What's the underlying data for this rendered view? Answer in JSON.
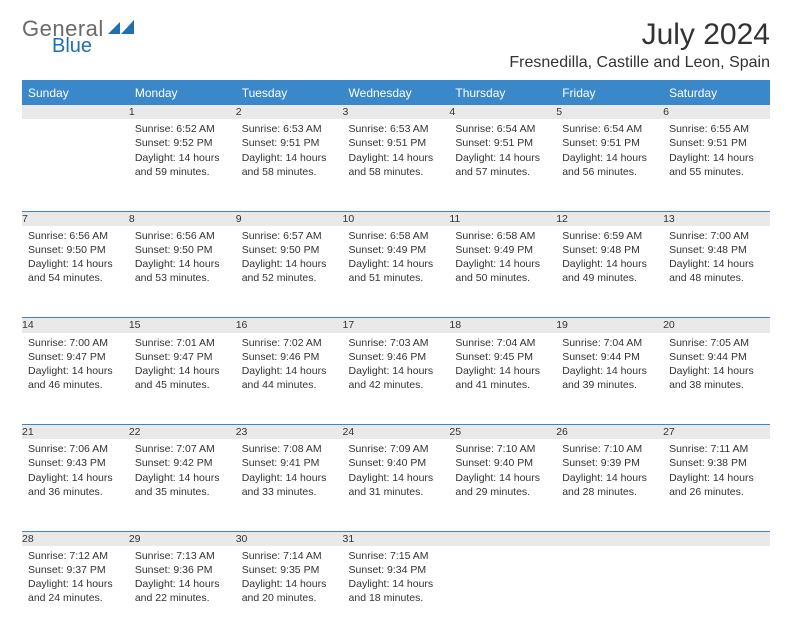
{
  "brand": {
    "line1": "General",
    "line2": "Blue"
  },
  "title": "July 2024",
  "location": "Fresnedilla, Castille and Leon, Spain",
  "colors": {
    "header_bg": "#3a88c9",
    "header_text": "#ffffff",
    "daynum_bg": "#e9e9e9",
    "border": "#3a88c9",
    "body_text": "#333333",
    "logo_gray": "#6a6a6a",
    "logo_blue": "#1f6fb2"
  },
  "weekdays": [
    "Sunday",
    "Monday",
    "Tuesday",
    "Wednesday",
    "Thursday",
    "Friday",
    "Saturday"
  ],
  "weeks": [
    [
      {
        "n": "",
        "sr": "",
        "ss": "",
        "dl": ""
      },
      {
        "n": "1",
        "sr": "Sunrise: 6:52 AM",
        "ss": "Sunset: 9:52 PM",
        "dl": "Daylight: 14 hours and 59 minutes."
      },
      {
        "n": "2",
        "sr": "Sunrise: 6:53 AM",
        "ss": "Sunset: 9:51 PM",
        "dl": "Daylight: 14 hours and 58 minutes."
      },
      {
        "n": "3",
        "sr": "Sunrise: 6:53 AM",
        "ss": "Sunset: 9:51 PM",
        "dl": "Daylight: 14 hours and 58 minutes."
      },
      {
        "n": "4",
        "sr": "Sunrise: 6:54 AM",
        "ss": "Sunset: 9:51 PM",
        "dl": "Daylight: 14 hours and 57 minutes."
      },
      {
        "n": "5",
        "sr": "Sunrise: 6:54 AM",
        "ss": "Sunset: 9:51 PM",
        "dl": "Daylight: 14 hours and 56 minutes."
      },
      {
        "n": "6",
        "sr": "Sunrise: 6:55 AM",
        "ss": "Sunset: 9:51 PM",
        "dl": "Daylight: 14 hours and 55 minutes."
      }
    ],
    [
      {
        "n": "7",
        "sr": "Sunrise: 6:56 AM",
        "ss": "Sunset: 9:50 PM",
        "dl": "Daylight: 14 hours and 54 minutes."
      },
      {
        "n": "8",
        "sr": "Sunrise: 6:56 AM",
        "ss": "Sunset: 9:50 PM",
        "dl": "Daylight: 14 hours and 53 minutes."
      },
      {
        "n": "9",
        "sr": "Sunrise: 6:57 AM",
        "ss": "Sunset: 9:50 PM",
        "dl": "Daylight: 14 hours and 52 minutes."
      },
      {
        "n": "10",
        "sr": "Sunrise: 6:58 AM",
        "ss": "Sunset: 9:49 PM",
        "dl": "Daylight: 14 hours and 51 minutes."
      },
      {
        "n": "11",
        "sr": "Sunrise: 6:58 AM",
        "ss": "Sunset: 9:49 PM",
        "dl": "Daylight: 14 hours and 50 minutes."
      },
      {
        "n": "12",
        "sr": "Sunrise: 6:59 AM",
        "ss": "Sunset: 9:48 PM",
        "dl": "Daylight: 14 hours and 49 minutes."
      },
      {
        "n": "13",
        "sr": "Sunrise: 7:00 AM",
        "ss": "Sunset: 9:48 PM",
        "dl": "Daylight: 14 hours and 48 minutes."
      }
    ],
    [
      {
        "n": "14",
        "sr": "Sunrise: 7:00 AM",
        "ss": "Sunset: 9:47 PM",
        "dl": "Daylight: 14 hours and 46 minutes."
      },
      {
        "n": "15",
        "sr": "Sunrise: 7:01 AM",
        "ss": "Sunset: 9:47 PM",
        "dl": "Daylight: 14 hours and 45 minutes."
      },
      {
        "n": "16",
        "sr": "Sunrise: 7:02 AM",
        "ss": "Sunset: 9:46 PM",
        "dl": "Daylight: 14 hours and 44 minutes."
      },
      {
        "n": "17",
        "sr": "Sunrise: 7:03 AM",
        "ss": "Sunset: 9:46 PM",
        "dl": "Daylight: 14 hours and 42 minutes."
      },
      {
        "n": "18",
        "sr": "Sunrise: 7:04 AM",
        "ss": "Sunset: 9:45 PM",
        "dl": "Daylight: 14 hours and 41 minutes."
      },
      {
        "n": "19",
        "sr": "Sunrise: 7:04 AM",
        "ss": "Sunset: 9:44 PM",
        "dl": "Daylight: 14 hours and 39 minutes."
      },
      {
        "n": "20",
        "sr": "Sunrise: 7:05 AM",
        "ss": "Sunset: 9:44 PM",
        "dl": "Daylight: 14 hours and 38 minutes."
      }
    ],
    [
      {
        "n": "21",
        "sr": "Sunrise: 7:06 AM",
        "ss": "Sunset: 9:43 PM",
        "dl": "Daylight: 14 hours and 36 minutes."
      },
      {
        "n": "22",
        "sr": "Sunrise: 7:07 AM",
        "ss": "Sunset: 9:42 PM",
        "dl": "Daylight: 14 hours and 35 minutes."
      },
      {
        "n": "23",
        "sr": "Sunrise: 7:08 AM",
        "ss": "Sunset: 9:41 PM",
        "dl": "Daylight: 14 hours and 33 minutes."
      },
      {
        "n": "24",
        "sr": "Sunrise: 7:09 AM",
        "ss": "Sunset: 9:40 PM",
        "dl": "Daylight: 14 hours and 31 minutes."
      },
      {
        "n": "25",
        "sr": "Sunrise: 7:10 AM",
        "ss": "Sunset: 9:40 PM",
        "dl": "Daylight: 14 hours and 29 minutes."
      },
      {
        "n": "26",
        "sr": "Sunrise: 7:10 AM",
        "ss": "Sunset: 9:39 PM",
        "dl": "Daylight: 14 hours and 28 minutes."
      },
      {
        "n": "27",
        "sr": "Sunrise: 7:11 AM",
        "ss": "Sunset: 9:38 PM",
        "dl": "Daylight: 14 hours and 26 minutes."
      }
    ],
    [
      {
        "n": "28",
        "sr": "Sunrise: 7:12 AM",
        "ss": "Sunset: 9:37 PM",
        "dl": "Daylight: 14 hours and 24 minutes."
      },
      {
        "n": "29",
        "sr": "Sunrise: 7:13 AM",
        "ss": "Sunset: 9:36 PM",
        "dl": "Daylight: 14 hours and 22 minutes."
      },
      {
        "n": "30",
        "sr": "Sunrise: 7:14 AM",
        "ss": "Sunset: 9:35 PM",
        "dl": "Daylight: 14 hours and 20 minutes."
      },
      {
        "n": "31",
        "sr": "Sunrise: 7:15 AM",
        "ss": "Sunset: 9:34 PM",
        "dl": "Daylight: 14 hours and 18 minutes."
      },
      {
        "n": "",
        "sr": "",
        "ss": "",
        "dl": ""
      },
      {
        "n": "",
        "sr": "",
        "ss": "",
        "dl": ""
      },
      {
        "n": "",
        "sr": "",
        "ss": "",
        "dl": ""
      }
    ]
  ]
}
